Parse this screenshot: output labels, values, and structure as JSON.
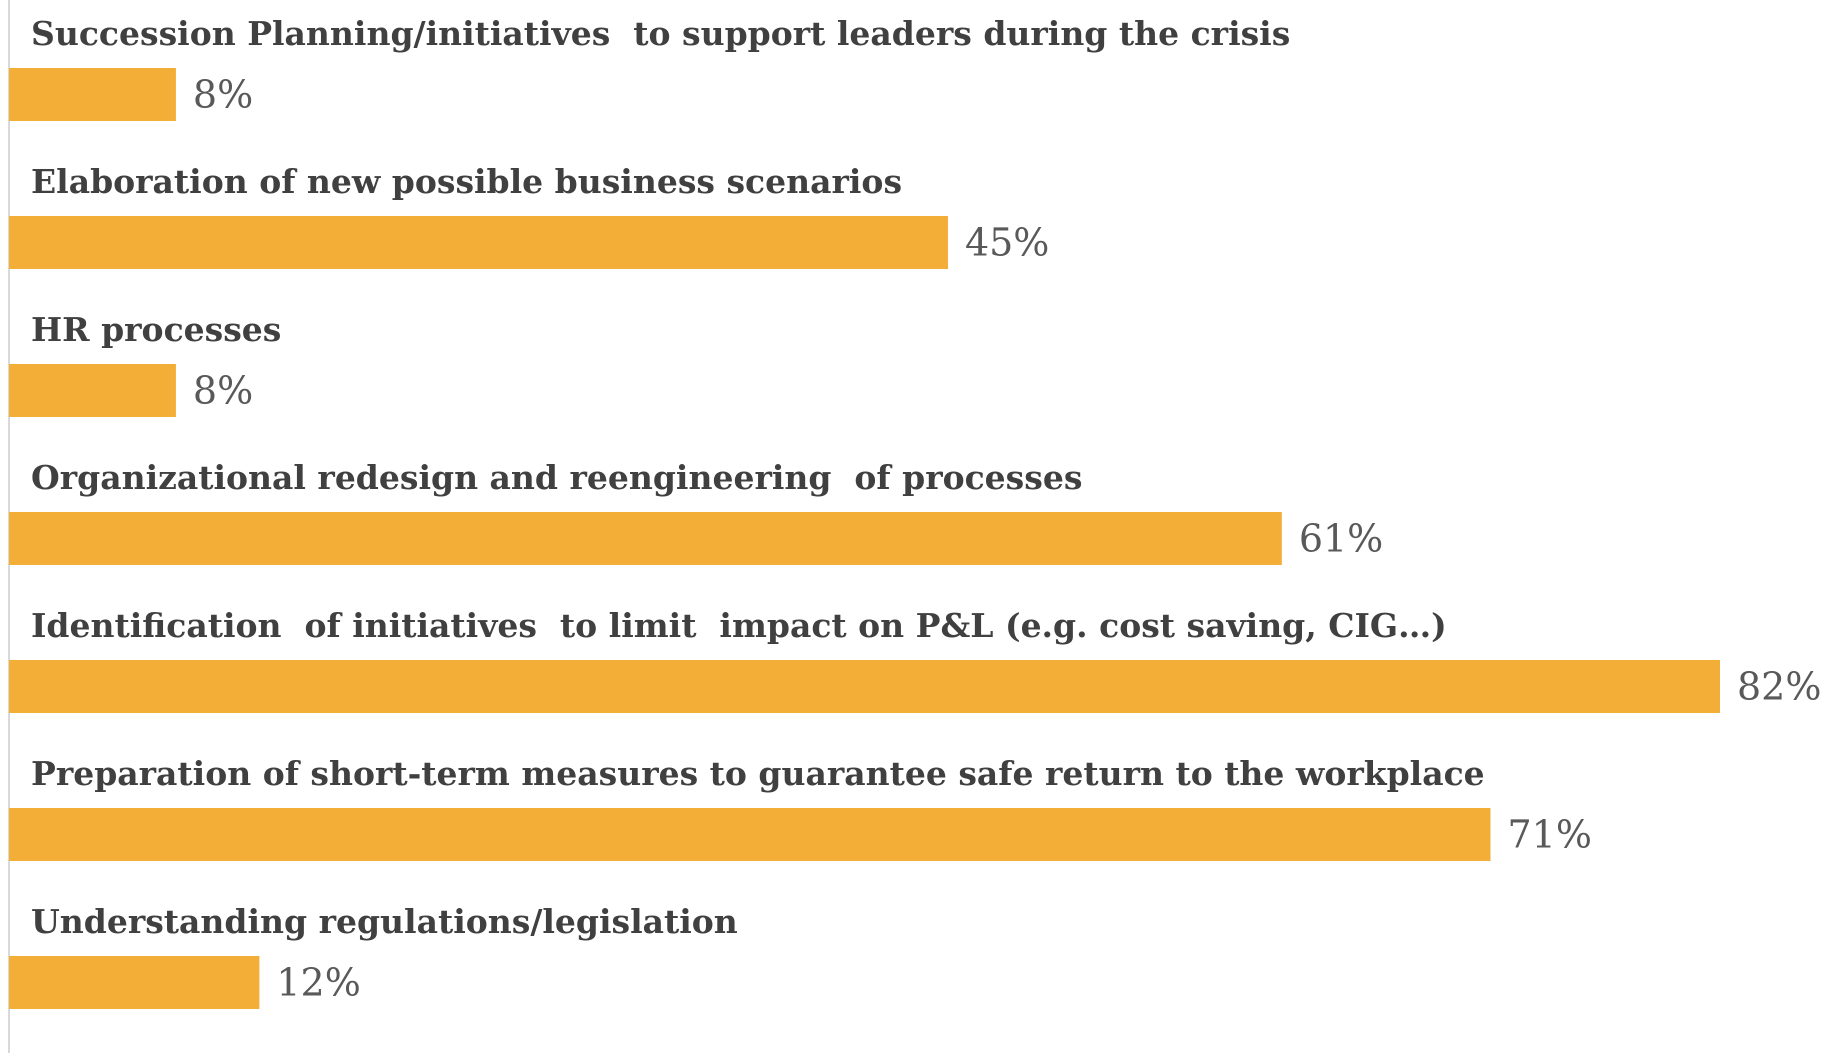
{
  "chart_data": {
    "type": "bar",
    "orientation": "horizontal",
    "categories": [
      "Succession Planning/initiatives  to support leaders during the crisis",
      "Elaboration of new possible business scenarios",
      "HR processes",
      "Organizational redesign and reengineering  of processes",
      "Identification  of initiatives  to limit  impact on P&L (e.g. cost saving, CIG…)",
      "Preparation of short-term measures to guarantee safe return to the workplace",
      "Understanding regulations/legislation"
    ],
    "values": [
      8,
      45,
      8,
      61,
      82,
      71,
      12
    ],
    "value_labels": [
      "8%",
      "45%",
      "8%",
      "61%",
      "82%",
      "71%",
      "12%"
    ],
    "unit": "%",
    "xlim": [
      0,
      82
    ],
    "grid": false,
    "legend": "none",
    "title": "",
    "xlabel": "",
    "ylabel": "",
    "colors": {
      "bar": "#F2AE37",
      "category_text": "#404040",
      "value_text": "#595959",
      "axis": "#D9D9D9"
    }
  }
}
